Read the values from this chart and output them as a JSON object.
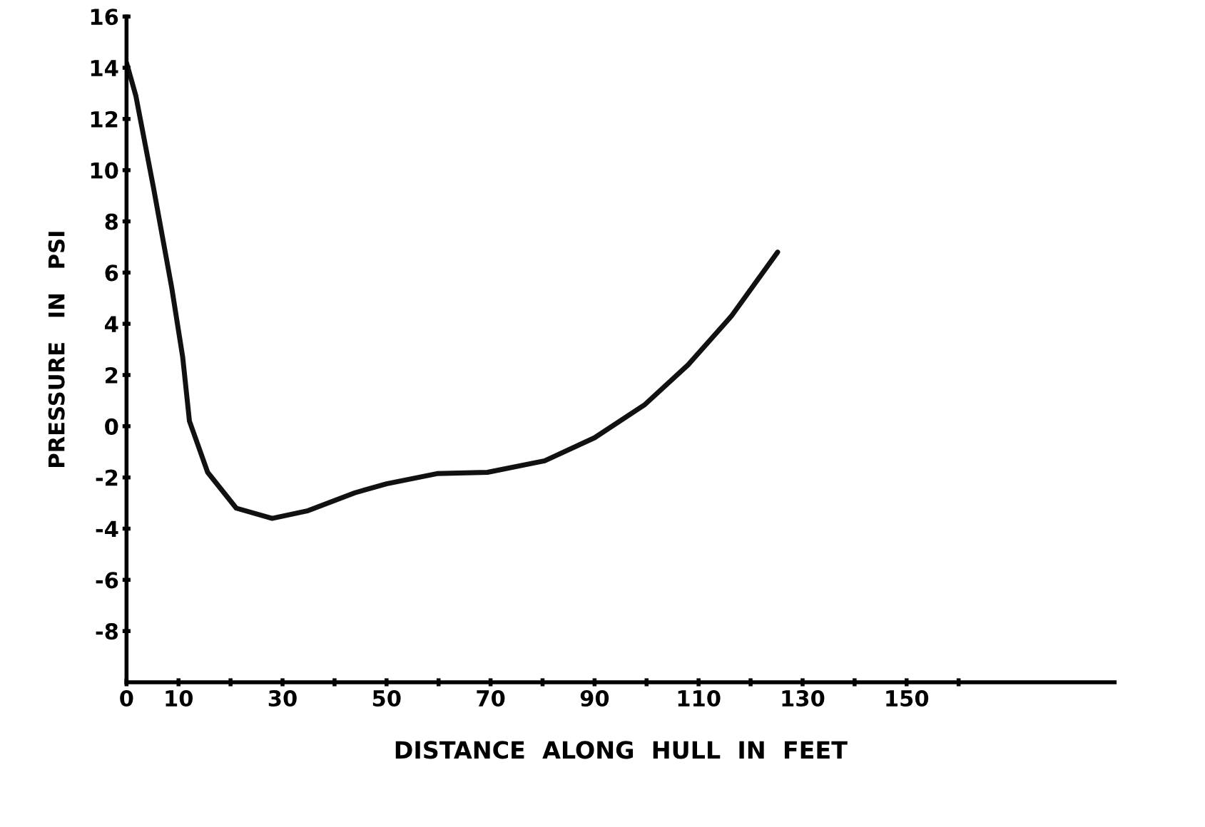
{
  "chart_data": {
    "type": "line",
    "xlabel": "DISTANCE  ALONG  HULL  IN  FEET",
    "ylabel": "PRESSURE   IN   PSI",
    "x": [
      0,
      1.8,
      5.2,
      8.7,
      10.8,
      12.1,
      15.6,
      21.1,
      28,
      34.9,
      43.9,
      50,
      59.7,
      69.4,
      80.4,
      90,
      99.7,
      108,
      116.3,
      125.2
    ],
    "series": [
      {
        "color": "#111111",
        "values": [
          14.2,
          12.9,
          9.3,
          5.4,
          2.7,
          0.2,
          -1.8,
          -3.2,
          -3.6,
          -3.3,
          -2.6,
          -2.25,
          -1.85,
          -1.8,
          -1.35,
          -0.45,
          0.85,
          2.4,
          4.3,
          6.8
        ]
      }
    ],
    "xlim": [
      0,
      190
    ],
    "xticks": [
      {
        "value": 0,
        "label": "0"
      },
      10,
      {
        "value": 20,
        "label": null
      },
      30,
      {
        "value": 40,
        "label": null
      },
      50,
      {
        "value": 60,
        "label": null
      },
      70,
      {
        "value": 80,
        "label": null
      },
      90,
      {
        "value": 100,
        "label": null
      },
      110,
      {
        "value": 120,
        "label": null
      },
      130,
      {
        "value": 140,
        "label": null
      },
      150,
      {
        "value": 160,
        "label": null
      }
    ],
    "ylim": [
      -10,
      16
    ],
    "yticks": [
      -8,
      -6,
      -4,
      -2,
      0,
      2,
      4,
      6,
      8,
      10,
      12,
      14,
      16
    ],
    "grid": false,
    "legend": false,
    "marker": "none",
    "line_style": "solid"
  }
}
